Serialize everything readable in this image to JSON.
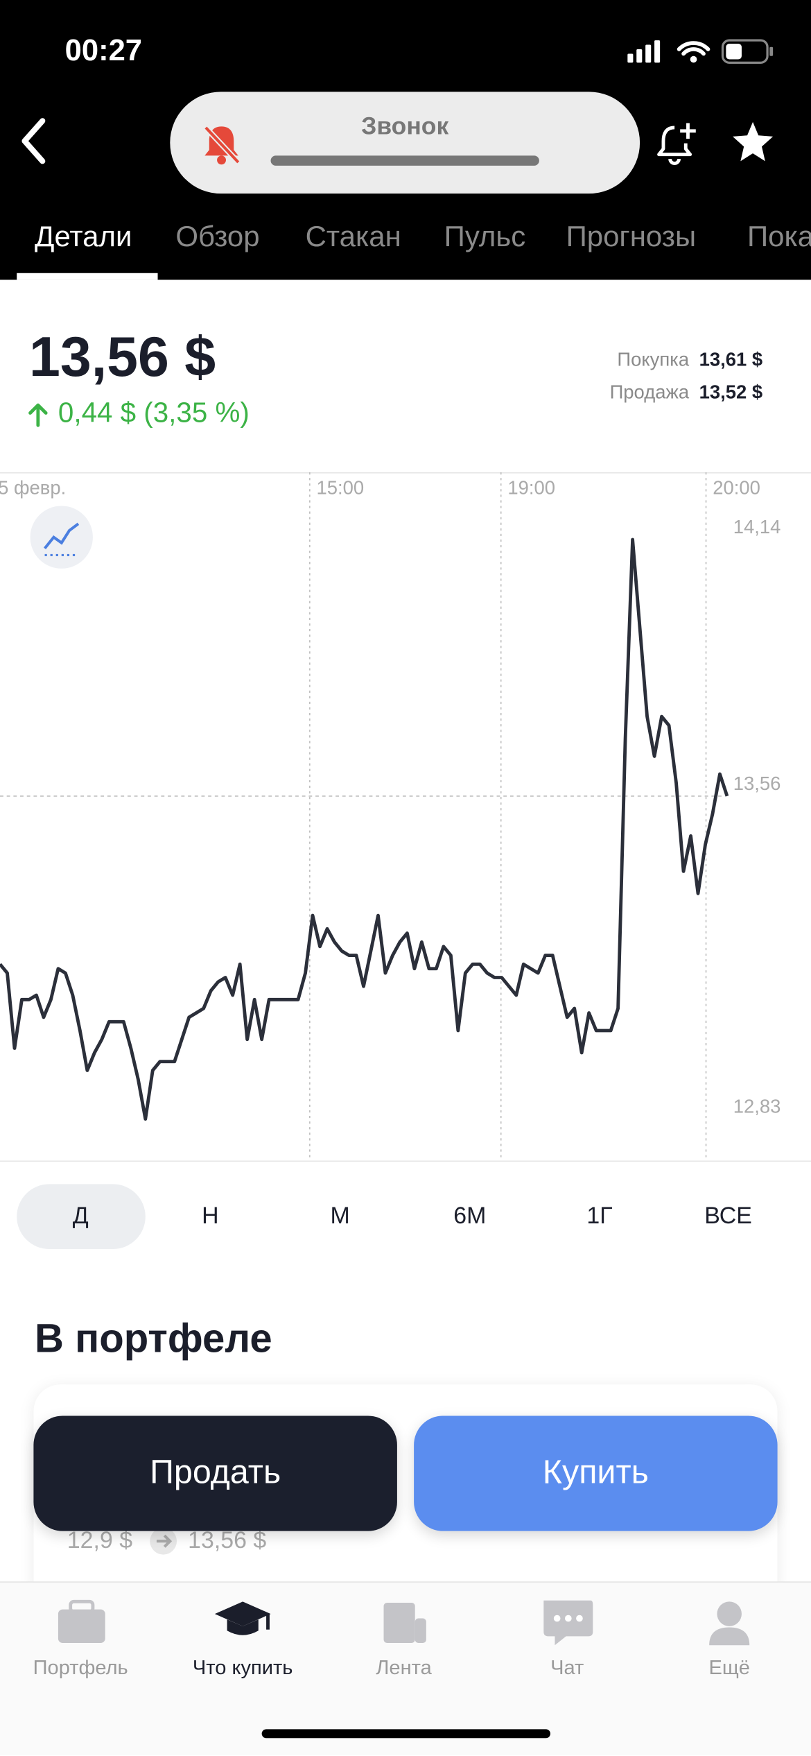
{
  "status_bar": {
    "time": "00:27"
  },
  "call_banner": {
    "label": "Звонок"
  },
  "tabs": [
    "Детали",
    "Обзор",
    "Стакан",
    "Пульс",
    "Прогнозы",
    "Пока"
  ],
  "quote": {
    "price": "13,56 $",
    "change": "0,44 $ (3,35 %)",
    "buy_label": "Покупка",
    "buy_price": "13,61 $",
    "sell_label": "Продажа",
    "sell_price": "13,52 $"
  },
  "chart_data": {
    "type": "line",
    "color": "#2b2f3a",
    "values": [
      13.18,
      13.16,
      12.99,
      13.1,
      13.1,
      13.11,
      13.06,
      13.1,
      13.17,
      13.16,
      13.11,
      13.03,
      12.94,
      12.98,
      13.01,
      13.05,
      13.05,
      13.05,
      12.99,
      12.92,
      12.83,
      12.94,
      12.96,
      12.96,
      12.96,
      13.01,
      13.06,
      13.07,
      13.08,
      13.12,
      13.14,
      13.15,
      13.11,
      13.18,
      13.01,
      13.1,
      13.01,
      13.1,
      13.1,
      13.1,
      13.1,
      13.1,
      13.16,
      13.29,
      13.22,
      13.26,
      13.23,
      13.21,
      13.2,
      13.2,
      13.13,
      13.21,
      13.29,
      13.16,
      13.2,
      13.23,
      13.25,
      13.17,
      13.23,
      13.17,
      13.17,
      13.22,
      13.2,
      13.03,
      13.16,
      13.18,
      13.18,
      13.16,
      13.15,
      13.15,
      13.13,
      13.11,
      13.18,
      13.17,
      13.16,
      13.2,
      13.2,
      13.13,
      13.06,
      13.08,
      12.98,
      13.07,
      13.03,
      13.03,
      13.03,
      13.08,
      13.69,
      14.14,
      13.94,
      13.74,
      13.65,
      13.74,
      13.72,
      13.59,
      13.39,
      13.47,
      13.34,
      13.45,
      13.52,
      13.61,
      13.56
    ],
    "xlim": [
      0,
      111.54
    ],
    "xticks": [
      {
        "value": -1.2,
        "label": "5 февр."
      },
      {
        "value": 42.6,
        "label": "15:00"
      },
      {
        "value": 68.9,
        "label": "19:00"
      },
      {
        "value": 97.1,
        "label": "20:00"
      }
    ],
    "ylim": [
      12.736,
      14.292
    ],
    "yticks": [
      {
        "value": 14.14,
        "label": "14,14"
      },
      {
        "value": 13.56,
        "label": "13,56"
      },
      {
        "value": 12.83,
        "label": "12,83"
      }
    ],
    "x_grid": true
  },
  "periods": [
    "Д",
    "Н",
    "М",
    "6М",
    "1Г",
    "ВСЕ"
  ],
  "portfolio": {
    "title": "В портфеле",
    "from": "12,9 $",
    "to": "13,56 $"
  },
  "actions": {
    "sell": "Продать",
    "buy": "Купить"
  },
  "nav": [
    "Портфель",
    "Что купить",
    "Лента",
    "Чат",
    "Ещё"
  ]
}
